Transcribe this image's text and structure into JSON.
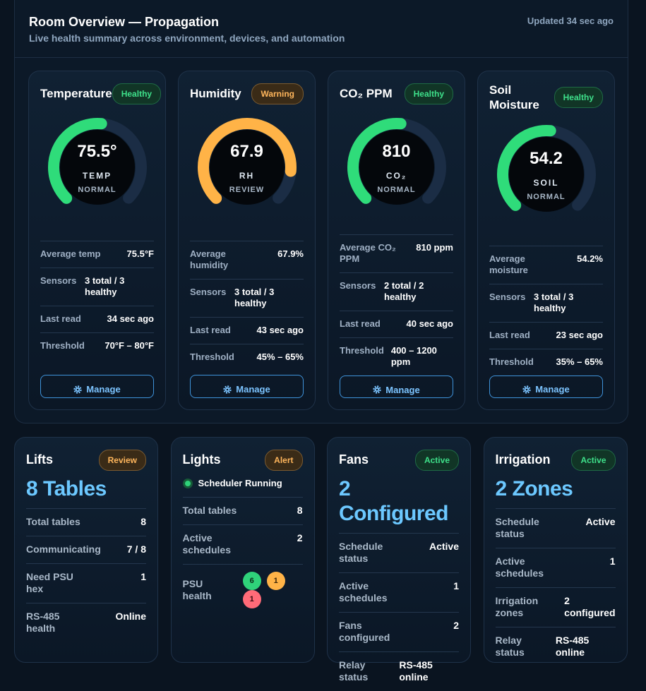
{
  "header": {
    "title": "Room Overview — Propagation",
    "subtitle": "Live health summary across environment, devices, and automation",
    "updated": "Updated 34 sec ago"
  },
  "sensors": [
    {
      "title": "Temperature",
      "badge": "Healthy",
      "value": "75.5°",
      "unit": "TEMP",
      "status": "NORMAL",
      "rows": [
        {
          "label": "Average temp",
          "value": "75.5°F"
        },
        {
          "label": "Sensors",
          "value": "3 total / 3 healthy"
        },
        {
          "label": "Last read",
          "value": "34 sec ago"
        },
        {
          "label": "Threshold",
          "value": "70°F – 80°F"
        }
      ],
      "button": "Manage"
    },
    {
      "title": "Humidity",
      "badge": "Warning",
      "value": "67.9",
      "unit": "RH",
      "status": "REVIEW",
      "rows": [
        {
          "label": "Average humidity",
          "value": "67.9%"
        },
        {
          "label": "Sensors",
          "value": "3 total / 3 healthy"
        },
        {
          "label": "Last read",
          "value": "43 sec ago"
        },
        {
          "label": "Threshold",
          "value": "45% – 65%"
        }
      ],
      "button": "Manage"
    },
    {
      "title": "CO₂ PPM",
      "badge": "Healthy",
      "value": "810",
      "unit": "CO₂",
      "status": "NORMAL",
      "rows": [
        {
          "label": "Average CO₂ PPM",
          "value": "810 ppm"
        },
        {
          "label": "Sensors",
          "value": "2 total / 2 healthy"
        },
        {
          "label": "Last read",
          "value": "40 sec ago"
        },
        {
          "label": "Threshold",
          "value": "400 – 1200 ppm"
        }
      ],
      "button": "Manage"
    },
    {
      "title": "Soil Moisture",
      "badge": "Healthy",
      "value": "54.2",
      "unit": "SOIL",
      "status": "NORMAL",
      "rows": [
        {
          "label": "Average moisture",
          "value": "54.2%"
        },
        {
          "label": "Sensors",
          "value": "3 total / 3 healthy"
        },
        {
          "label": "Last read",
          "value": "23 sec ago"
        },
        {
          "label": "Threshold",
          "value": "35% – 65%"
        }
      ],
      "button": "Manage"
    }
  ],
  "devices": [
    {
      "title": "Lifts",
      "badge": "Review",
      "headline": "8 Tables",
      "rows": [
        {
          "label": "Total tables",
          "value": "8"
        },
        {
          "label": "Communicating",
          "value": "7 / 8"
        },
        {
          "label": "Need PSU hex",
          "value": "1"
        },
        {
          "label": "RS-485 health",
          "value": "Online"
        }
      ]
    },
    {
      "title": "Lights",
      "badge": "Alert",
      "status_line": "Scheduler Running",
      "rows": [
        {
          "label": "Total tables",
          "value": "8"
        },
        {
          "label": "Active schedules",
          "value": "2"
        }
      ],
      "psu_health": {
        "label": "PSU health",
        "counts": [
          "6",
          "1",
          "1"
        ]
      }
    },
    {
      "title": "Fans",
      "badge": "Active",
      "headline": "2 Configured",
      "rows": [
        {
          "label": "Schedule status",
          "value": "Active"
        },
        {
          "label": "Active schedules",
          "value": "1"
        },
        {
          "label": "Fans configured",
          "value": "2"
        },
        {
          "label": "Relay status",
          "value": "RS-485 online"
        }
      ]
    },
    {
      "title": "Irrigation",
      "badge": "Active",
      "headline": "2 Zones",
      "rows": [
        {
          "label": "Schedule status",
          "value": "Active"
        },
        {
          "label": "Active schedules",
          "value": "1"
        },
        {
          "label": "Irrigation zones",
          "value": "2 configured"
        },
        {
          "label": "Relay status",
          "value": "RS-485 online"
        }
      ]
    }
  ]
}
